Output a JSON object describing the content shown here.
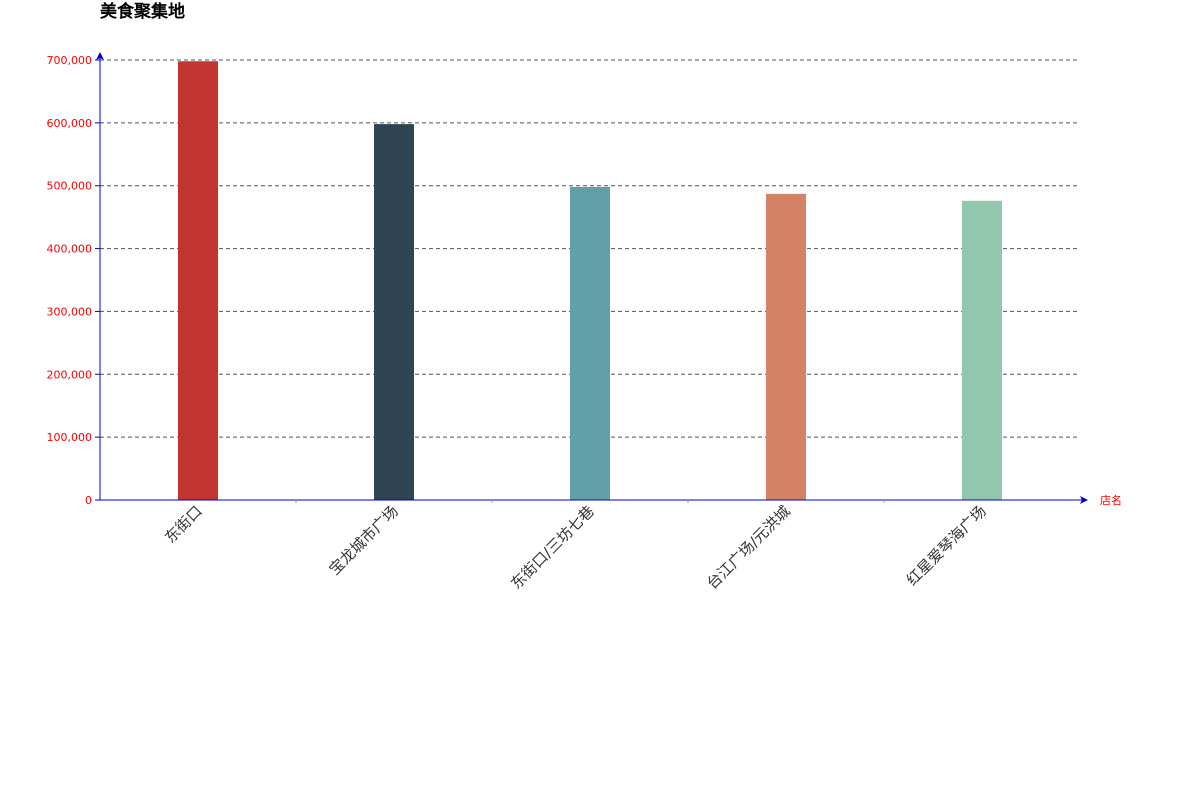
{
  "chart_data": {
    "type": "bar",
    "title": "美食聚集地",
    "xlabel": "店名",
    "ylabel": "",
    "categories": [
      "东街口",
      "宝龙城市广场",
      "东街口/三坊七巷",
      "台江广场/元洪城",
      "红星爱琴海广场"
    ],
    "values": [
      698000,
      598000,
      498000,
      487000,
      476000
    ],
    "colors": [
      "#c23531",
      "#2f4554",
      "#61a0a8",
      "#d48265",
      "#91c7ae"
    ],
    "ylim": [
      0,
      700000
    ],
    "yticks": [
      0,
      100000,
      200000,
      300000,
      400000,
      500000,
      600000,
      700000
    ],
    "ytick_labels": [
      "0",
      "100,000",
      "200,000",
      "300,000",
      "400,000",
      "500,000",
      "600,000",
      "700,000"
    ],
    "grid": true,
    "legend": "none",
    "axis_color": "#0000cd",
    "tick_label_color": "#ff0000",
    "grid_color": "#555555"
  }
}
